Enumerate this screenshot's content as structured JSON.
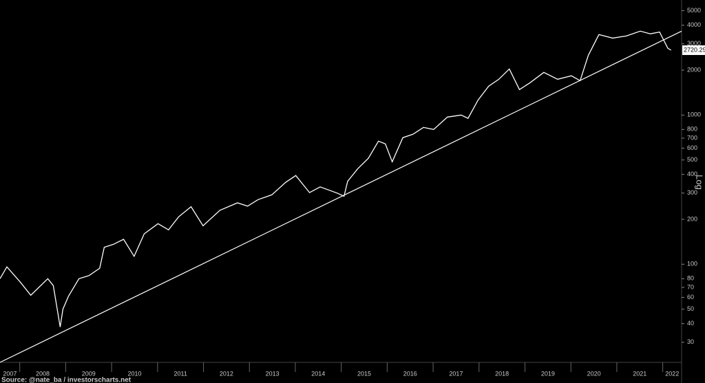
{
  "chart_data": {
    "type": "line",
    "log_scale": true,
    "color": "#ffffff",
    "series": [
      {
        "x": [
          2007.57,
          2007.72,
          2008.01,
          2008.24,
          2008.61,
          2008.73,
          2008.88,
          2008.94,
          2009.06,
          2009.29,
          2009.51,
          2009.74,
          2009.84,
          2010.04,
          2010.26,
          2010.49,
          2010.71,
          2011.01,
          2011.24,
          2011.46,
          2011.73,
          2011.99,
          2012.36,
          2012.74,
          2012.96,
          2013.19,
          2013.49,
          2013.79,
          2014.01,
          2014.31,
          2014.54,
          2014.91,
          2015.06,
          2015.14,
          2015.36,
          2015.59,
          2015.81,
          2015.96,
          2016.11,
          2016.34,
          2016.56,
          2016.79,
          2017.01,
          2017.31,
          2017.61,
          2017.76,
          2017.98,
          2018.21,
          2018.43,
          2018.66,
          2018.88,
          2019.11,
          2019.41,
          2019.71,
          2020.01,
          2020.2,
          2020.38,
          2020.61,
          2020.91,
          2021.21,
          2021.51,
          2021.73,
          2021.93,
          2022.11,
          2022.18
        ],
        "values": [
          80,
          96,
          76,
          62,
          80,
          72,
          38,
          50,
          61,
          80,
          84,
          94,
          130,
          136,
          147,
          113,
          160,
          187,
          170,
          208,
          243,
          181,
          230,
          258,
          245,
          271,
          292,
          354,
          393,
          302,
          330,
          300,
          286,
          360,
          437,
          513,
          668,
          640,
          486,
          705,
          743,
          826,
          800,
          969,
          1000,
          950,
          1263,
          1561,
          1736,
          2035,
          1481,
          1646,
          1930,
          1736,
          1832,
          1700,
          2517,
          3460,
          3277,
          3388,
          3650,
          3500,
          3600,
          2800,
          2720.29
        ]
      }
    ],
    "trend_line": {
      "x": [
        2007.57,
        2022.41
      ],
      "values": [
        22,
        3650
      ]
    },
    "xlim": [
      2007.57,
      2022.41
    ],
    "xticks": [
      2008,
      2009,
      2010,
      2011,
      2012,
      2013,
      2014,
      2015,
      2016,
      2017,
      2018,
      2019,
      2020,
      2021,
      2022
    ],
    "year_labels": [
      "2007",
      "2008",
      "2009",
      "2010",
      "2011",
      "2012",
      "2013",
      "2014",
      "2015",
      "2016",
      "2017",
      "2018",
      "2019",
      "2020",
      "2021",
      "2022"
    ],
    "ylim": [
      22,
      5900
    ],
    "yticks": [
      30,
      40,
      50,
      60,
      70,
      80,
      100,
      200,
      300,
      400,
      500,
      600,
      700,
      800,
      1000,
      2000,
      3000,
      4000,
      5000
    ],
    "y_axis_label": "Log",
    "source": "Source: @nate_ba / investorscharts.net"
  }
}
